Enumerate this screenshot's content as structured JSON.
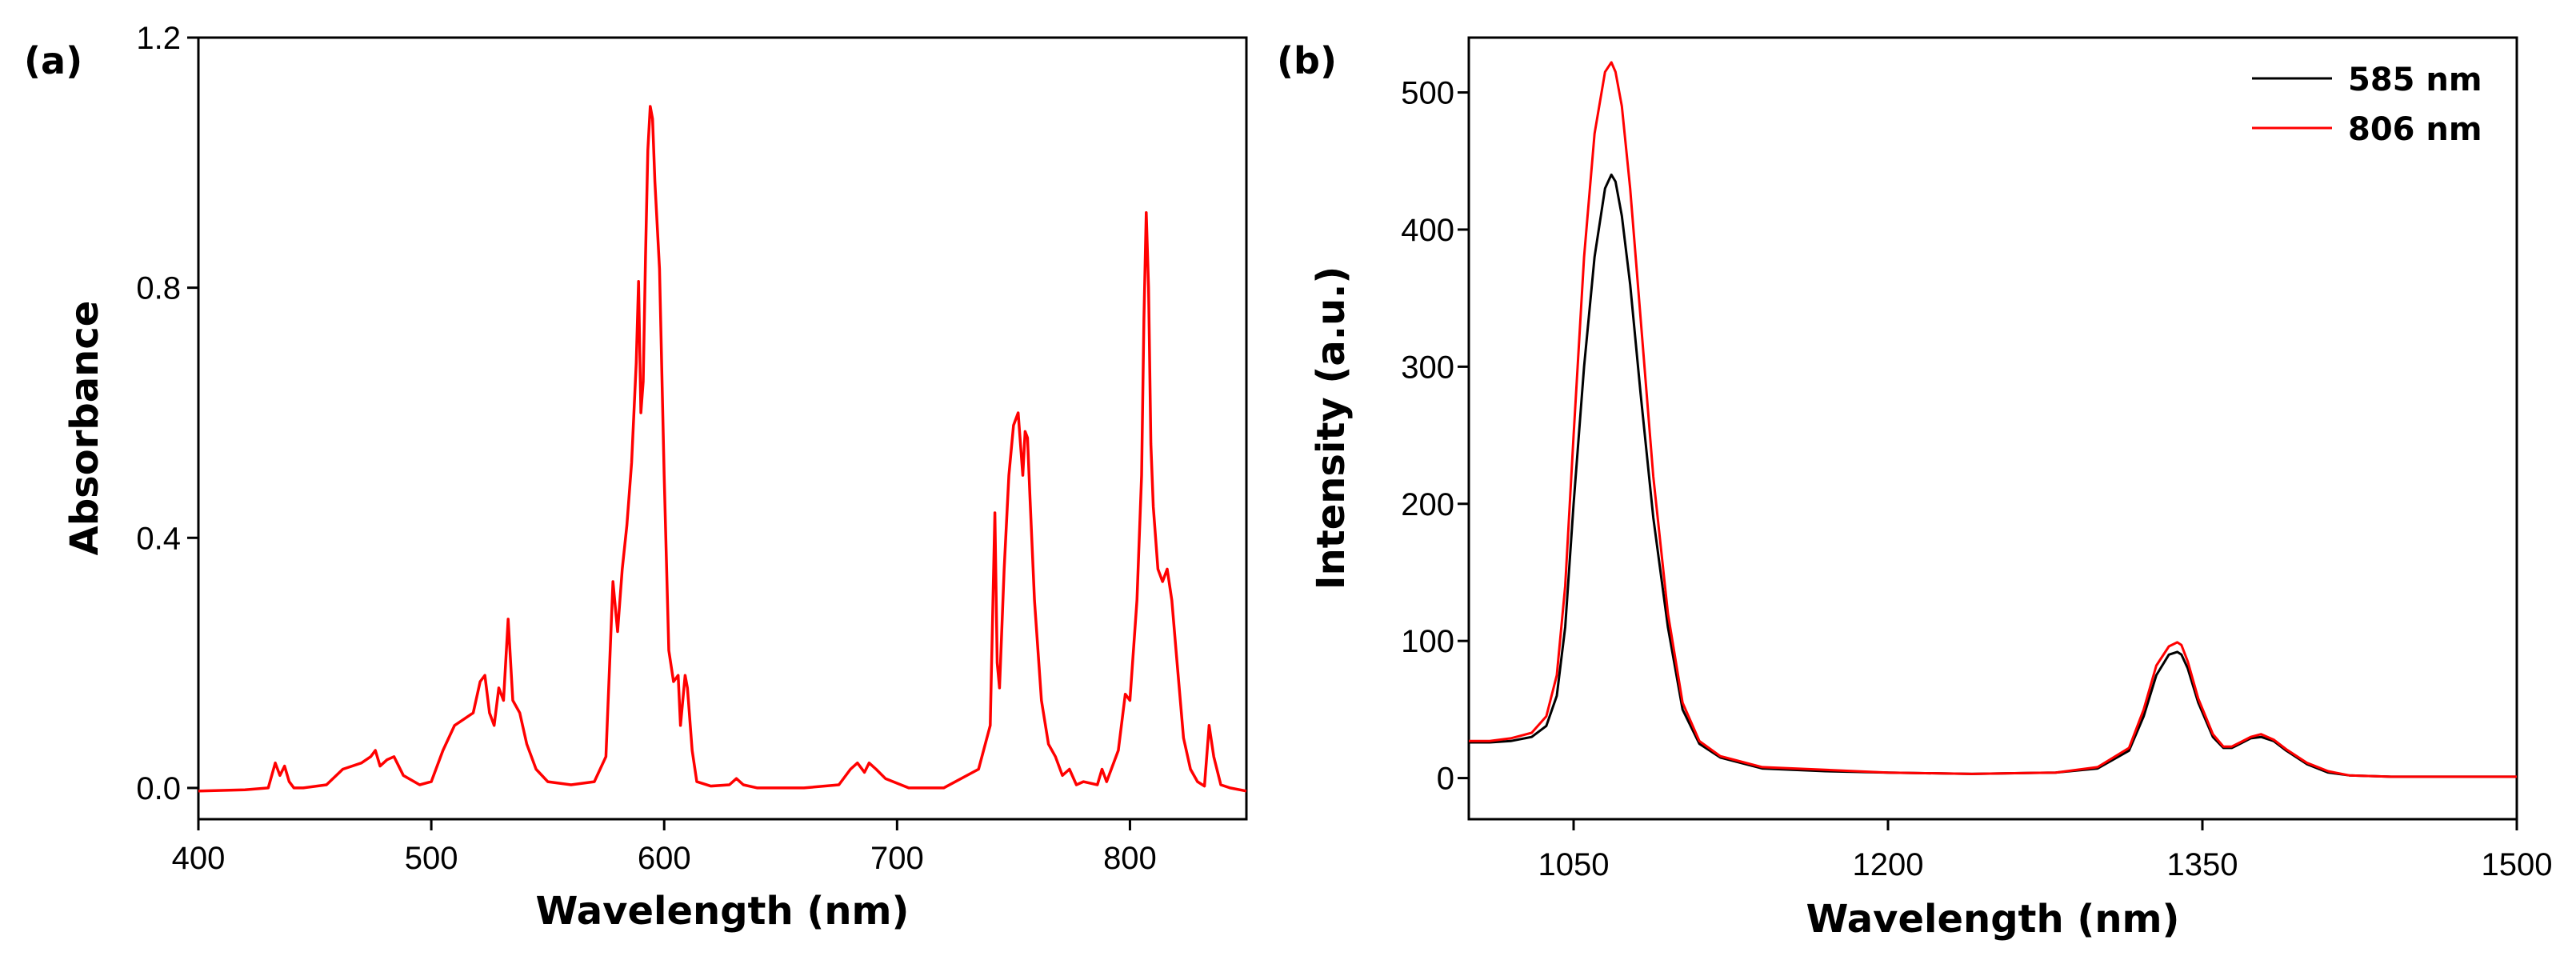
{
  "chart_data": [
    {
      "panel_label": "(a)",
      "type": "line",
      "xlabel": "Wavelength (nm)",
      "ylabel": "Absorbance",
      "xlim": [
        400,
        850
      ],
      "ylim": [
        -0.05,
        1.2
      ],
      "xticks": [
        400,
        500,
        600,
        700,
        800
      ],
      "xtick_labels": [
        "400",
        "500",
        "600",
        "700",
        "800"
      ],
      "yticks": [
        0.0,
        0.4,
        0.8,
        1.2
      ],
      "ytick_labels": [
        "0.0",
        "0.4",
        "0.8",
        "1.2"
      ],
      "grid": false,
      "series": [
        {
          "name": "absorbance",
          "color": "#ff0000",
          "x": [
            400,
            420,
            430,
            433,
            435,
            437,
            439,
            441,
            445,
            455,
            462,
            466,
            470,
            474,
            476,
            478,
            481,
            484,
            488,
            495,
            500,
            505,
            510,
            514,
            518,
            521,
            523,
            525,
            527,
            529,
            531,
            533,
            535,
            538,
            541,
            545,
            550,
            560,
            570,
            575,
            578,
            580,
            582,
            584,
            586,
            588,
            589,
            590,
            591,
            592,
            593,
            594,
            595,
            596,
            597,
            598,
            600,
            602,
            604,
            606,
            607,
            609,
            610,
            612,
            614,
            620,
            628,
            631,
            634,
            640,
            660,
            675,
            680,
            683,
            686,
            688,
            691,
            695,
            705,
            720,
            735,
            740,
            742,
            743,
            744,
            746,
            748,
            750,
            752,
            753,
            754,
            755,
            756,
            757,
            759,
            762,
            765,
            768,
            771,
            774,
            777,
            780,
            786,
            788,
            790,
            795,
            798,
            800,
            803,
            805,
            806,
            807,
            808,
            809,
            810,
            812,
            814,
            816,
            818,
            820,
            823,
            826,
            829,
            832,
            834,
            836,
            839,
            843,
            850
          ],
          "y": [
            -0.005,
            -0.003,
            0.0,
            0.04,
            0.02,
            0.035,
            0.01,
            0.0,
            0.0,
            0.005,
            0.03,
            0.035,
            0.04,
            0.05,
            0.06,
            0.035,
            0.045,
            0.05,
            0.02,
            0.005,
            0.01,
            0.06,
            0.1,
            0.11,
            0.12,
            0.17,
            0.18,
            0.12,
            0.1,
            0.16,
            0.14,
            0.27,
            0.14,
            0.12,
            0.07,
            0.03,
            0.01,
            0.005,
            0.01,
            0.05,
            0.33,
            0.25,
            0.35,
            0.42,
            0.52,
            0.68,
            0.81,
            0.6,
            0.65,
            0.85,
            1.02,
            1.09,
            1.07,
            0.97,
            0.9,
            0.83,
            0.5,
            0.22,
            0.17,
            0.18,
            0.1,
            0.18,
            0.16,
            0.06,
            0.01,
            0.003,
            0.005,
            0.015,
            0.005,
            0.0,
            0.0,
            0.005,
            0.03,
            0.04,
            0.025,
            0.04,
            0.03,
            0.015,
            0.0,
            0.0,
            0.03,
            0.1,
            0.44,
            0.2,
            0.16,
            0.35,
            0.5,
            0.58,
            0.6,
            0.55,
            0.5,
            0.57,
            0.56,
            0.47,
            0.3,
            0.14,
            0.07,
            0.05,
            0.02,
            0.03,
            0.005,
            0.01,
            0.005,
            0.03,
            0.01,
            0.06,
            0.15,
            0.14,
            0.3,
            0.5,
            0.75,
            0.92,
            0.8,
            0.55,
            0.45,
            0.35,
            0.33,
            0.35,
            0.3,
            0.21,
            0.08,
            0.03,
            0.01,
            0.003,
            0.1,
            0.05,
            0.005,
            0.0,
            -0.005
          ]
        }
      ]
    },
    {
      "panel_label": "(b)",
      "type": "line",
      "xlabel": "Wavelength (nm)",
      "ylabel": "Intensity (a.u.)",
      "xlim": [
        1000,
        1500
      ],
      "ylim": [
        -30,
        540
      ],
      "xticks": [
        1050,
        1200,
        1350,
        1500
      ],
      "xtick_labels": [
        "1050",
        "1200",
        "1350",
        "1500"
      ],
      "yticks": [
        0,
        100,
        200,
        300,
        400,
        500
      ],
      "ytick_labels": [
        "0",
        "100",
        "200",
        "300",
        "400",
        "500"
      ],
      "grid": false,
      "legend_position": "top-right",
      "series": [
        {
          "name": "585 nm",
          "color": "#000000",
          "x": [
            1000,
            1010,
            1020,
            1030,
            1037,
            1042,
            1046,
            1050,
            1055,
            1060,
            1065,
            1068,
            1070,
            1073,
            1077,
            1082,
            1088,
            1095,
            1102,
            1110,
            1120,
            1140,
            1170,
            1200,
            1240,
            1280,
            1300,
            1315,
            1322,
            1328,
            1334,
            1338,
            1340,
            1343,
            1348,
            1355,
            1360,
            1364,
            1368,
            1373,
            1378,
            1384,
            1390,
            1400,
            1410,
            1420,
            1440,
            1460,
            1480,
            1500
          ],
          "y": [
            26,
            26,
            27,
            30,
            38,
            60,
            110,
            200,
            300,
            380,
            430,
            440,
            435,
            410,
            360,
            280,
            190,
            110,
            50,
            25,
            15,
            7,
            5,
            4,
            3,
            4,
            7,
            20,
            45,
            75,
            90,
            92,
            90,
            80,
            55,
            30,
            22,
            22,
            25,
            29,
            30,
            27,
            20,
            10,
            4,
            2,
            1,
            1,
            1,
            1
          ]
        },
        {
          "name": "806 nm",
          "color": "#ff0000",
          "x": [
            1000,
            1010,
            1020,
            1030,
            1037,
            1042,
            1046,
            1050,
            1055,
            1060,
            1065,
            1068,
            1070,
            1073,
            1077,
            1082,
            1088,
            1095,
            1102,
            1110,
            1120,
            1140,
            1170,
            1200,
            1240,
            1280,
            1300,
            1315,
            1322,
            1328,
            1334,
            1338,
            1340,
            1343,
            1348,
            1355,
            1360,
            1364,
            1368,
            1373,
            1378,
            1384,
            1390,
            1400,
            1410,
            1420,
            1440,
            1460,
            1480,
            1500
          ],
          "y": [
            27,
            27,
            29,
            33,
            45,
            75,
            140,
            250,
            380,
            470,
            515,
            522,
            515,
            490,
            430,
            335,
            220,
            120,
            55,
            27,
            16,
            8,
            6,
            4,
            3,
            4,
            8,
            22,
            50,
            82,
            96,
            99,
            97,
            85,
            58,
            32,
            23,
            23,
            26,
            30,
            32,
            28,
            21,
            11,
            5,
            2,
            1,
            1,
            1,
            1
          ]
        }
      ]
    }
  ]
}
